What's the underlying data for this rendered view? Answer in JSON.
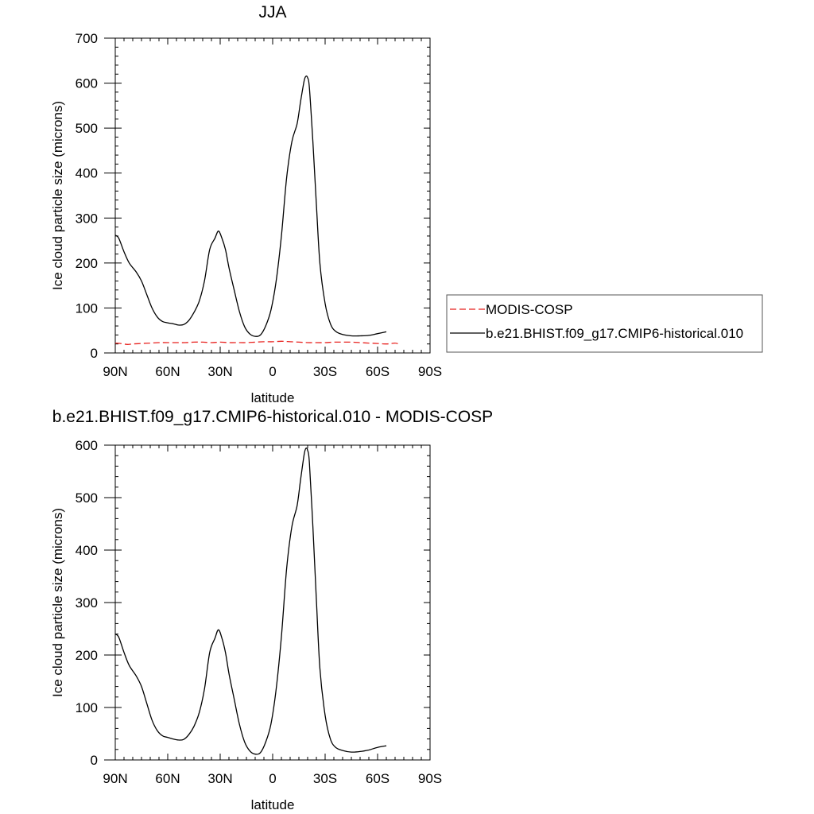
{
  "chart_data": [
    {
      "type": "line",
      "title": "JJA",
      "xlabel": "latitude",
      "ylabel": "Ice cloud particle size (microns)",
      "xlim": [
        90,
        -90
      ],
      "ylim": [
        0,
        700
      ],
      "xticks": [
        90,
        60,
        30,
        0,
        -30,
        -60,
        -90
      ],
      "xtick_labels": [
        "90N",
        "60N",
        "30N",
        "0",
        "30S",
        "60S",
        "90S"
      ],
      "yticks": [
        0,
        100,
        200,
        300,
        400,
        500,
        600,
        700
      ],
      "ytick_labels": [
        "0",
        "100",
        "200",
        "300",
        "400",
        "500",
        "600",
        "700"
      ],
      "legend": "right",
      "grid": false,
      "series": [
        {
          "name": "MODIS-COSP",
          "color": "#e8221f",
          "dash": "dashed",
          "x": [
            90,
            87,
            83,
            80,
            75,
            70,
            65,
            60,
            55,
            50,
            45,
            40,
            35,
            30,
            25,
            20,
            15,
            10,
            5,
            0,
            -5,
            -10,
            -15,
            -20,
            -25,
            -30,
            -35,
            -40,
            -45,
            -50,
            -55,
            -60,
            -65,
            -68,
            -70,
            -72
          ],
          "y": [
            22,
            21,
            19,
            20,
            21,
            22,
            23,
            23,
            23,
            23,
            24,
            24,
            23,
            24,
            23,
            23,
            23,
            24,
            25,
            25,
            26,
            25,
            24,
            23,
            23,
            23,
            24,
            24,
            24,
            23,
            22,
            21,
            20,
            21,
            22,
            20
          ]
        },
        {
          "name": "b.e21.BHIST.f09_g17.CMIP6-historical.010",
          "color": "#000000",
          "dash": "solid",
          "x": [
            90,
            88,
            85,
            82,
            78,
            75,
            72,
            69,
            66,
            63,
            60,
            57,
            54,
            51,
            48,
            45,
            42,
            39,
            36,
            33,
            31,
            29,
            27,
            25,
            22,
            19,
            16,
            13,
            10,
            7,
            4,
            1,
            -2,
            -5,
            -8,
            -11,
            -14,
            -16,
            -18,
            -19,
            -20,
            -21,
            -23,
            -25,
            -27,
            -30,
            -33,
            -36,
            -40,
            -45,
            -50,
            -55,
            -60,
            -65
          ],
          "y": [
            262,
            255,
            225,
            200,
            180,
            160,
            130,
            100,
            80,
            70,
            67,
            65,
            62,
            63,
            72,
            90,
            115,
            160,
            230,
            255,
            271,
            255,
            230,
            190,
            140,
            92,
            58,
            42,
            37,
            40,
            60,
            95,
            160,
            260,
            390,
            470,
            510,
            560,
            605,
            615,
            612,
            590,
            470,
            330,
            200,
            110,
            65,
            48,
            41,
            38,
            38,
            39,
            43,
            47
          ]
        }
      ]
    },
    {
      "type": "line",
      "title": "b.e21.BHIST.f09_g17.CMIP6-historical.010 - MODIS-COSP",
      "xlabel": "latitude",
      "ylabel": "Ice cloud particle size (microns)",
      "xlim": [
        90,
        -90
      ],
      "ylim": [
        0,
        600
      ],
      "xticks": [
        90,
        60,
        30,
        0,
        -30,
        -60,
        -90
      ],
      "xtick_labels": [
        "90N",
        "60N",
        "30N",
        "0",
        "30S",
        "60S",
        "90S"
      ],
      "yticks": [
        0,
        100,
        200,
        300,
        400,
        500,
        600
      ],
      "ytick_labels": [
        "0",
        "100",
        "200",
        "300",
        "400",
        "500",
        "600"
      ],
      "grid": false,
      "series": [
        {
          "color": "#000000",
          "dash": "solid",
          "x": [
            90,
            88,
            85,
            82,
            78,
            75,
            72,
            69,
            66,
            63,
            60,
            57,
            54,
            51,
            48,
            45,
            42,
            39,
            36,
            33,
            31,
            29,
            27,
            25,
            22,
            19,
            16,
            13,
            10,
            7,
            4,
            1,
            -2,
            -5,
            -8,
            -11,
            -14,
            -16,
            -18,
            -19,
            -20,
            -21,
            -23,
            -25,
            -27,
            -30,
            -33,
            -36,
            -40,
            -45,
            -50,
            -55,
            -60,
            -65
          ],
          "y": [
            240,
            234,
            205,
            180,
            160,
            140,
            108,
            76,
            56,
            46,
            43,
            40,
            38,
            39,
            48,
            64,
            90,
            135,
            205,
            232,
            248,
            232,
            205,
            165,
            116,
            68,
            34,
            17,
            11,
            14,
            34,
            68,
            135,
            235,
            365,
            445,
            485,
            535,
            582,
            594,
            590,
            567,
            445,
            305,
            175,
            85,
            40,
            24,
            18,
            15,
            16,
            19,
            24,
            27
          ]
        }
      ]
    }
  ]
}
